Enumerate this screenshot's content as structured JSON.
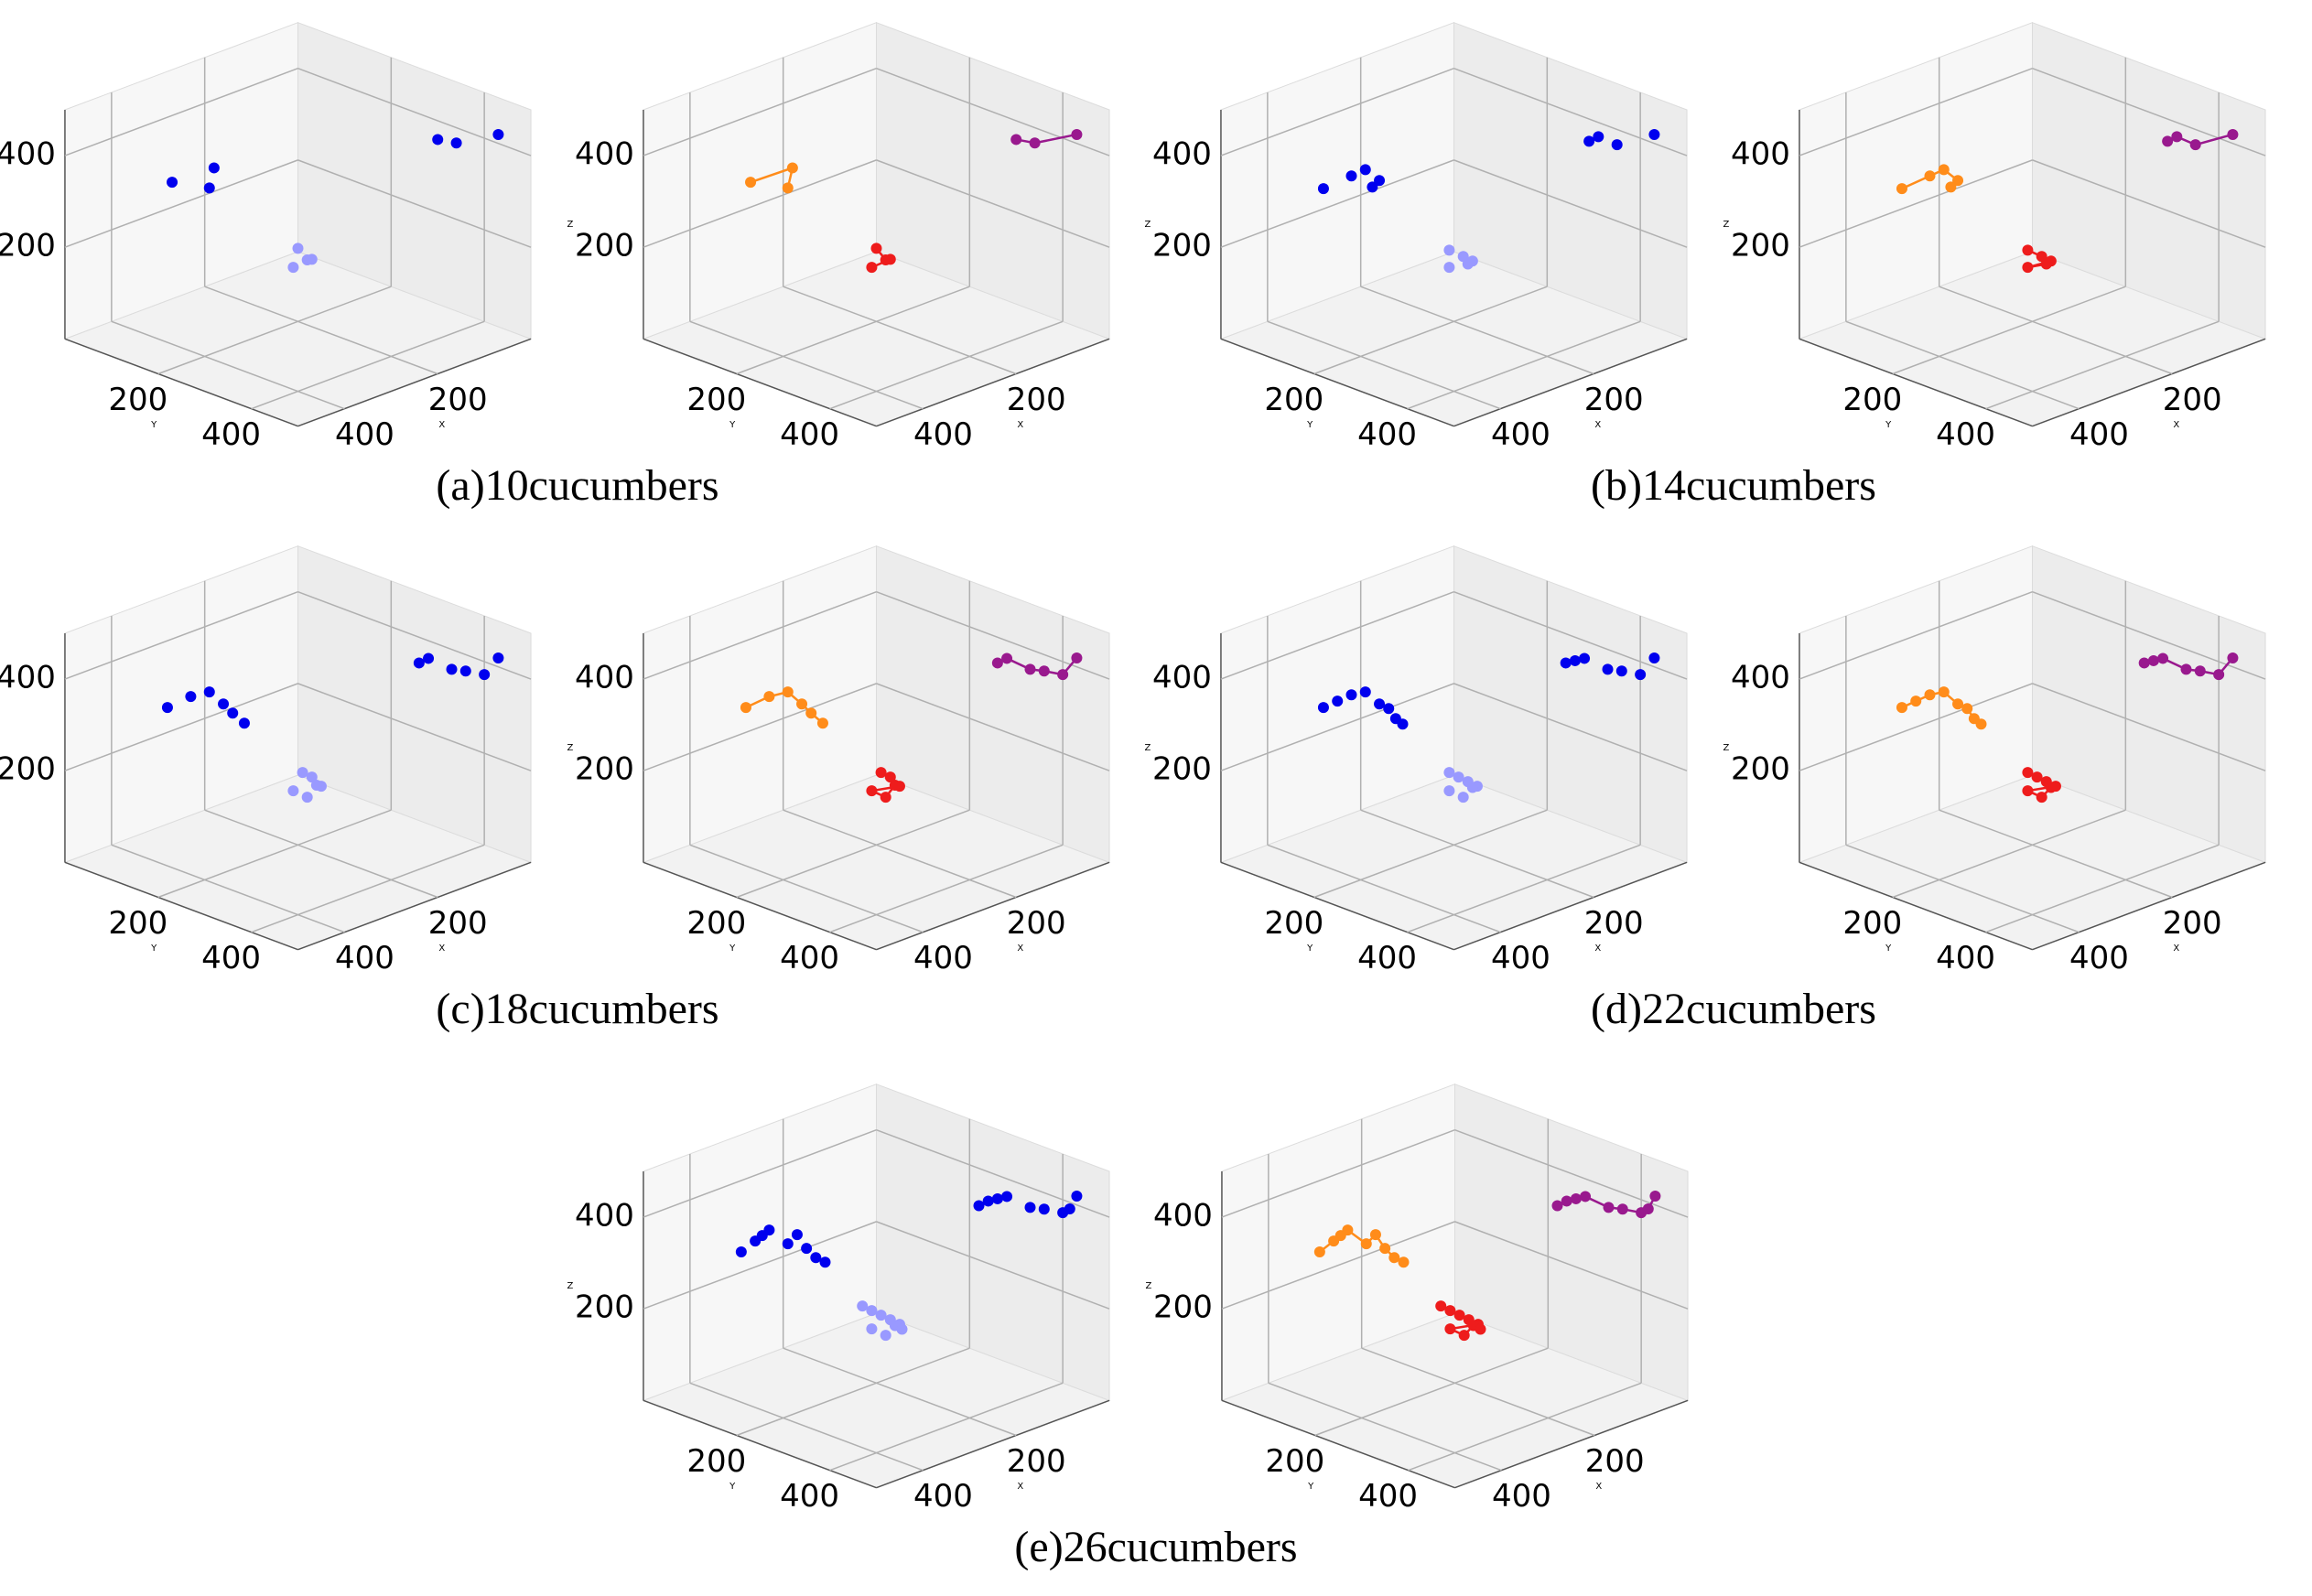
{
  "chart_data": [
    {
      "type": "scatter3d",
      "title": "(a)10cucumbers",
      "xlabel": "X",
      "ylabel": "Y",
      "zlabel": "Z",
      "xlim": [
        0,
        500
      ],
      "ylim": [
        0,
        500
      ],
      "zlim": [
        0,
        500
      ],
      "xticks": [
        200,
        400
      ],
      "yticks": [
        200,
        400
      ],
      "zticks": [
        200,
        400
      ],
      "grid": true,
      "panels": [
        {
          "mode": "markers"
        },
        {
          "mode": "lines+markers"
        }
      ],
      "series": [
        {
          "colors": [
            "#0000ee",
            "#ff8c1a"
          ],
          "x": [
            330,
            270,
            280
          ],
          "y": [
            60,
            90,
            90
          ],
          "z": [
            300,
            320,
            280
          ]
        },
        {
          "colors": [
            "#9999ff",
            "#ee1c1c"
          ],
          "x": [
            240,
            250,
            230,
            260
          ],
          "y": [
            240,
            270,
            260,
            250
          ],
          "z": [
            190,
            180,
            170,
            160
          ]
        },
        {
          "colors": [
            "#0000ee",
            "#99198e"
          ],
          "x": [
            80,
            70,
            40
          ],
          "y": [
            380,
            410,
            470
          ],
          "z": [
            420,
            420,
            450
          ]
        }
      ]
    },
    {
      "type": "scatter3d",
      "title": "(b)14cucumbers",
      "xlabel": "X",
      "ylabel": "Y",
      "zlabel": "Z",
      "xlim": [
        0,
        500
      ],
      "ylim": [
        0,
        500
      ],
      "zlim": [
        0,
        500
      ],
      "xticks": [
        200,
        400
      ],
      "yticks": [
        200,
        400
      ],
      "zticks": [
        200,
        400
      ],
      "grid": true,
      "panels": [
        {
          "mode": "markers"
        },
        {
          "mode": "lines+markers"
        }
      ],
      "series": [
        {
          "colors": [
            "#0000ee",
            "#ff8c1a"
          ],
          "x": [
            340,
            300,
            280,
            270,
            270
          ],
          "y": [
            60,
            80,
            90,
            110,
            95
          ],
          "z": [
            290,
            310,
            320,
            300,
            280
          ]
        },
        {
          "colors": [
            "#9999ff",
            "#ee1c1c"
          ],
          "x": [
            250,
            240,
            230,
            260,
            250
          ],
          "y": [
            240,
            260,
            270,
            250,
            280
          ],
          "z": [
            190,
            180,
            170,
            160,
            175
          ]
        },
        {
          "colors": [
            "#0000ee",
            "#99198e"
          ],
          "x": [
            90,
            80,
            70,
            40
          ],
          "y": [
            380,
            390,
            420,
            470
          ],
          "z": [
            420,
            430,
            420,
            450
          ]
        }
      ]
    },
    {
      "type": "scatter3d",
      "title": "(c)18cucumbers",
      "xlabel": "X",
      "ylabel": "Y",
      "zlabel": "Z",
      "xlim": [
        0,
        500
      ],
      "ylim": [
        0,
        500
      ],
      "zlim": [
        0,
        500
      ],
      "xticks": [
        200,
        400
      ],
      "yticks": [
        200,
        400
      ],
      "zticks": [
        200,
        400
      ],
      "grid": true,
      "panels": [
        {
          "mode": "markers"
        },
        {
          "mode": "lines+markers"
        }
      ],
      "series": [
        {
          "colors": [
            "#0000ee",
            "#ff8c1a"
          ],
          "x": [
            340,
            310,
            290,
            270,
            260,
            250
          ],
          "y": [
            60,
            80,
            100,
            110,
            120,
            135
          ],
          "z": [
            300,
            320,
            330,
            300,
            280,
            260
          ]
        },
        {
          "colors": [
            "#9999ff",
            "#ee1c1c"
          ],
          "x": [
            250,
            240,
            230,
            260,
            250,
            245
          ],
          "y": [
            260,
            270,
            280,
            250,
            270,
            285
          ],
          "z": [
            200,
            190,
            170,
            160,
            150,
            180
          ]
        },
        {
          "colors": [
            "#0000ee",
            "#99198e"
          ],
          "x": [
            100,
            90,
            70,
            60,
            50,
            40
          ],
          "y": [
            360,
            370,
            400,
            420,
            450,
            470
          ],
          "z": [
            420,
            430,
            410,
            410,
            410,
            450
          ]
        }
      ]
    },
    {
      "type": "scatter3d",
      "title": "(d)22cucumbers",
      "xlabel": "X",
      "ylabel": "Y",
      "zlabel": "Z",
      "xlim": [
        0,
        500
      ],
      "ylim": [
        0,
        500
      ],
      "zlim": [
        0,
        500
      ],
      "xticks": [
        200,
        400
      ],
      "yticks": [
        200,
        400
      ],
      "zticks": [
        200,
        400
      ],
      "grid": true,
      "panels": [
        {
          "mode": "markers"
        },
        {
          "mode": "lines+markers"
        }
      ],
      "series": [
        {
          "colors": [
            "#0000ee",
            "#ff8c1a"
          ],
          "x": [
            340,
            320,
            300,
            290,
            270,
            260,
            255,
            250
          ],
          "y": [
            60,
            70,
            80,
            100,
            110,
            120,
            130,
            140
          ],
          "z": [
            300,
            310,
            320,
            330,
            300,
            290,
            270,
            260
          ]
        },
        {
          "colors": [
            "#9999ff",
            "#ee1c1c"
          ],
          "x": [
            260,
            250,
            240,
            230,
            260,
            250,
            245
          ],
          "y": [
            250,
            260,
            270,
            280,
            250,
            270,
            285
          ],
          "z": [
            200,
            190,
            180,
            170,
            160,
            150,
            175
          ]
        },
        {
          "colors": [
            "#0000ee",
            "#99198e"
          ],
          "x": [
            110,
            100,
            90,
            70,
            60,
            50,
            40
          ],
          "y": [
            350,
            360,
            370,
            400,
            420,
            450,
            470
          ],
          "z": [
            420,
            425,
            430,
            410,
            410,
            410,
            450
          ]
        }
      ]
    },
    {
      "type": "scatter3d",
      "title": "(e)26cucumbers",
      "xlabel": "X",
      "ylabel": "Y",
      "zlabel": "Z",
      "xlim": [
        0,
        500
      ],
      "ylim": [
        0,
        500
      ],
      "zlim": [
        0,
        500
      ],
      "xticks": [
        200,
        400
      ],
      "yticks": [
        200,
        400
      ],
      "zticks": [
        200,
        400
      ],
      "grid": true,
      "panels": [
        {
          "mode": "markers"
        },
        {
          "mode": "lines+markers"
        }
      ],
      "series": [
        {
          "colors": [
            "#0000ee",
            "#ff8c1a"
          ],
          "x": [
            350,
            330,
            320,
            310,
            290,
            280,
            270,
            260,
            250
          ],
          "y": [
            60,
            70,
            75,
            80,
            100,
            110,
            120,
            130,
            140
          ],
          "z": [
            290,
            310,
            320,
            330,
            300,
            320,
            290,
            270,
            260
          ]
        },
        {
          "colors": [
            "#9999ff",
            "#ee1c1c"
          ],
          "x": [
            270,
            260,
            250,
            240,
            230,
            260,
            250,
            245,
            235
          ],
          "y": [
            240,
            250,
            260,
            270,
            280,
            250,
            270,
            285,
            290
          ],
          "z": [
            210,
            200,
            190,
            180,
            170,
            160,
            150,
            175,
            165
          ]
        },
        {
          "colors": [
            "#0000ee",
            "#99198e"
          ],
          "x": [
            120,
            110,
            100,
            90,
            70,
            60,
            50,
            45,
            40
          ],
          "y": [
            340,
            350,
            360,
            370,
            400,
            420,
            450,
            460,
            470
          ],
          "z": [
            410,
            420,
            425,
            430,
            410,
            410,
            410,
            420,
            450
          ]
        }
      ]
    }
  ]
}
